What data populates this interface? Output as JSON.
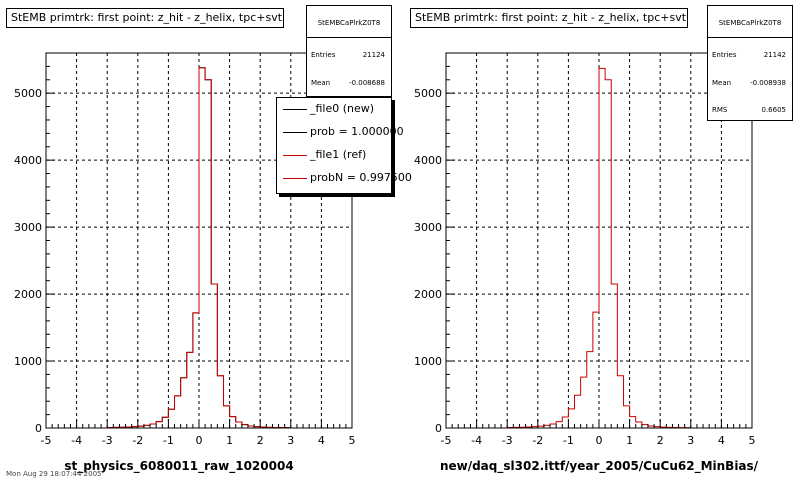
{
  "chart_data": [
    {
      "type": "bar",
      "title": "StEMB primtrk: first point: z_hit - z_helix, tpc+svt",
      "xlabel": "st_physics_6080011_raw_1020004",
      "ylabel": "",
      "xlim": [
        -5,
        5
      ],
      "ylim": [
        0,
        5600
      ],
      "x_ticks": [
        -5,
        -4,
        -3,
        -2,
        -1,
        0,
        1,
        2,
        3,
        4,
        5
      ],
      "y_ticks": [
        0,
        1000,
        2000,
        3000,
        4000,
        5000
      ],
      "grid": true,
      "bins": {
        "low": -3.0,
        "width": 0.2
      },
      "series": [
        {
          "name": "_file0 (new)",
          "color": "#000000",
          "values": [
            8,
            10,
            12,
            15,
            20,
            28,
            40,
            60,
            95,
            160,
            280,
            480,
            750,
            1130,
            1720,
            5380,
            5200,
            2150,
            780,
            330,
            170,
            90,
            50,
            30,
            20,
            14,
            10,
            8,
            6,
            5
          ]
        },
        {
          "name": "_file1 (ref)",
          "color": "#cc0000",
          "values": [
            8,
            10,
            12,
            15,
            20,
            28,
            40,
            60,
            95,
            160,
            280,
            480,
            750,
            1130,
            1720,
            5380,
            5200,
            2150,
            780,
            330,
            170,
            90,
            50,
            30,
            20,
            14,
            10,
            8,
            6,
            5
          ]
        }
      ],
      "stats": {
        "title": "StEMBCaPlrkZ0T8",
        "entries": "21124",
        "mean": "-0.008688"
      },
      "legend": {
        "position": "top-right",
        "items": [
          {
            "label": "_file0 (new)",
            "color": "#000000"
          },
          {
            "label": "prob = 1.000000",
            "color": "#000000"
          },
          {
            "label": "_file1 (ref)",
            "color": "#cc0000"
          },
          {
            "label": "probN = 0.997500",
            "color": "#cc0000"
          }
        ]
      }
    },
    {
      "type": "bar",
      "title": "StEMB primtrk: first point: z_hit - z_helix, tpc+svt",
      "xlabel": "new/daq_sl302.ittf/year_2005/CuCu62_MinBias/",
      "ylabel": "",
      "xlim": [
        -5,
        5
      ],
      "ylim": [
        0,
        5600
      ],
      "x_ticks": [
        -5,
        -4,
        -3,
        -2,
        -1,
        0,
        1,
        2,
        3,
        4,
        5
      ],
      "y_ticks": [
        0,
        1000,
        2000,
        3000,
        4000,
        5000
      ],
      "grid": true,
      "bins": {
        "low": -3.0,
        "width": 0.2
      },
      "series": [
        {
          "name": "",
          "color": "#cc0000",
          "values": [
            8,
            10,
            12,
            15,
            20,
            28,
            40,
            60,
            95,
            165,
            285,
            490,
            760,
            1140,
            1730,
            5370,
            5200,
            2150,
            780,
            330,
            170,
            90,
            50,
            30,
            20,
            14,
            10,
            8,
            6,
            5
          ]
        }
      ],
      "stats": {
        "title": "StEMBCaPlrkZ0T8",
        "entries": "21142",
        "mean": "-0.008938",
        "rms": "0.6605"
      }
    }
  ],
  "stats_labels": {
    "entries": "Entries",
    "mean": "Mean",
    "rms": "RMS"
  },
  "footer_text": "Mon Aug 29 18:07:44 2005"
}
